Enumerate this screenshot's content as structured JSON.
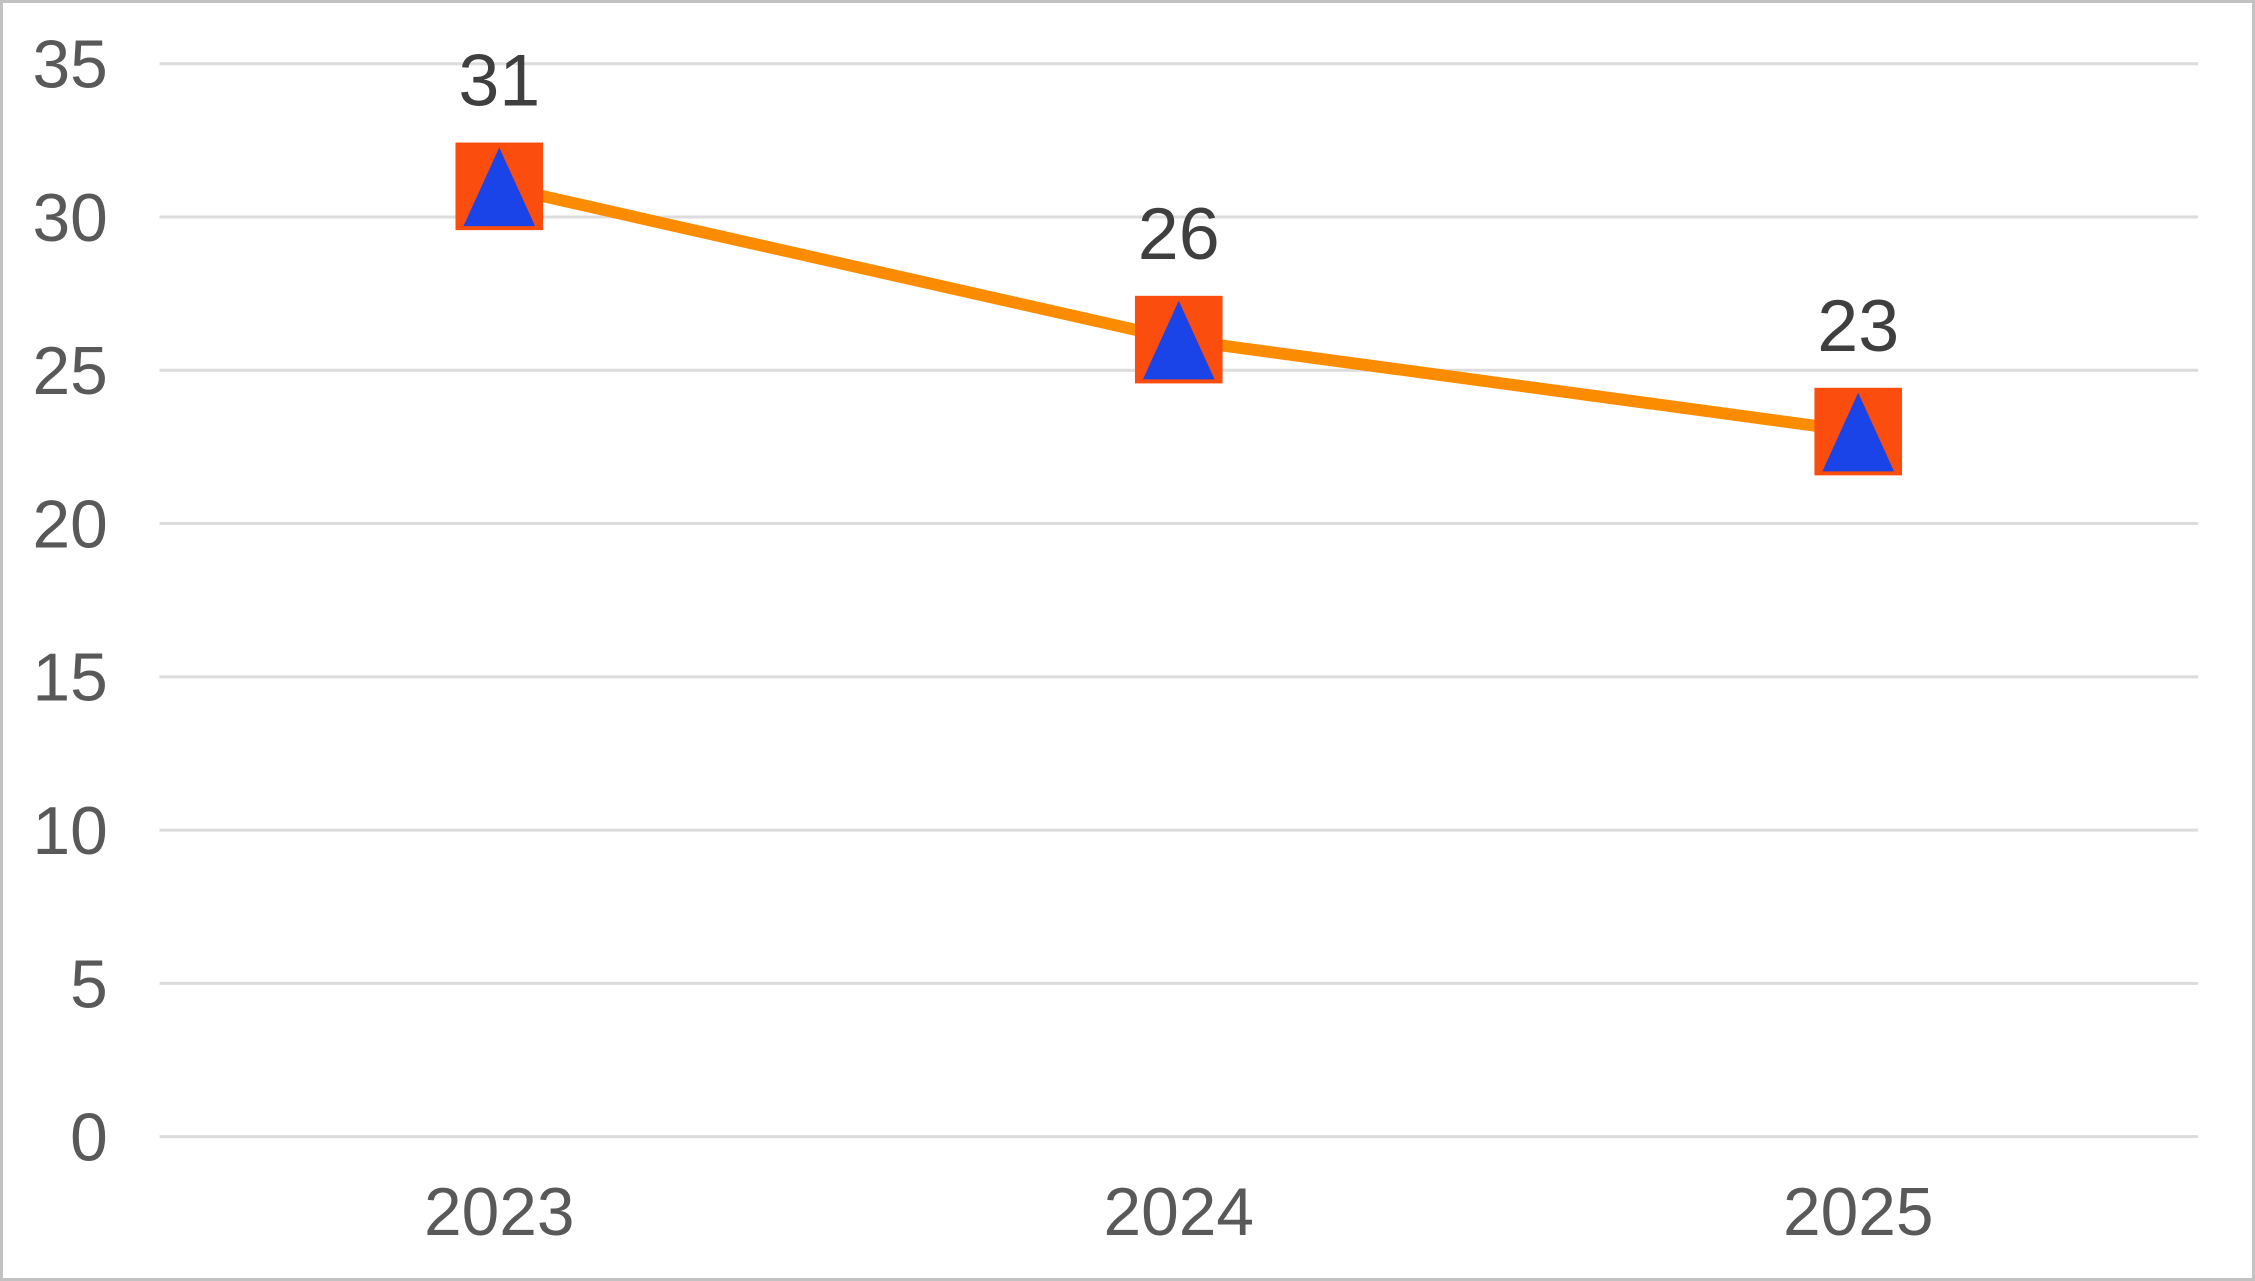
{
  "frame": {
    "background": "#FFFFFF",
    "border_color": "#C2C2C2"
  },
  "chart_data": {
    "type": "line",
    "title": "",
    "categories": [
      "2023",
      "2024",
      "2025"
    ],
    "series": [
      {
        "name": "",
        "values": [
          31,
          26,
          23
        ]
      }
    ],
    "data_labels": [
      "31",
      "26",
      "23"
    ],
    "show_data_labels": true,
    "xlabel": "",
    "ylabel": "",
    "ylim": [
      0,
      35
    ],
    "yticks": [
      0,
      5,
      10,
      15,
      20,
      25,
      30,
      35
    ],
    "grid": "horizontal",
    "legend": "none",
    "marker_shape": "square-with-triangle-up",
    "colors": {
      "line": "#FB8C00",
      "marker_square": "#FA4D0E",
      "marker_triangle": "#1A43E8",
      "gridline": "#DCDCDC",
      "axis_tick_label": "#595959",
      "data_label": "#3F3F3F"
    }
  }
}
